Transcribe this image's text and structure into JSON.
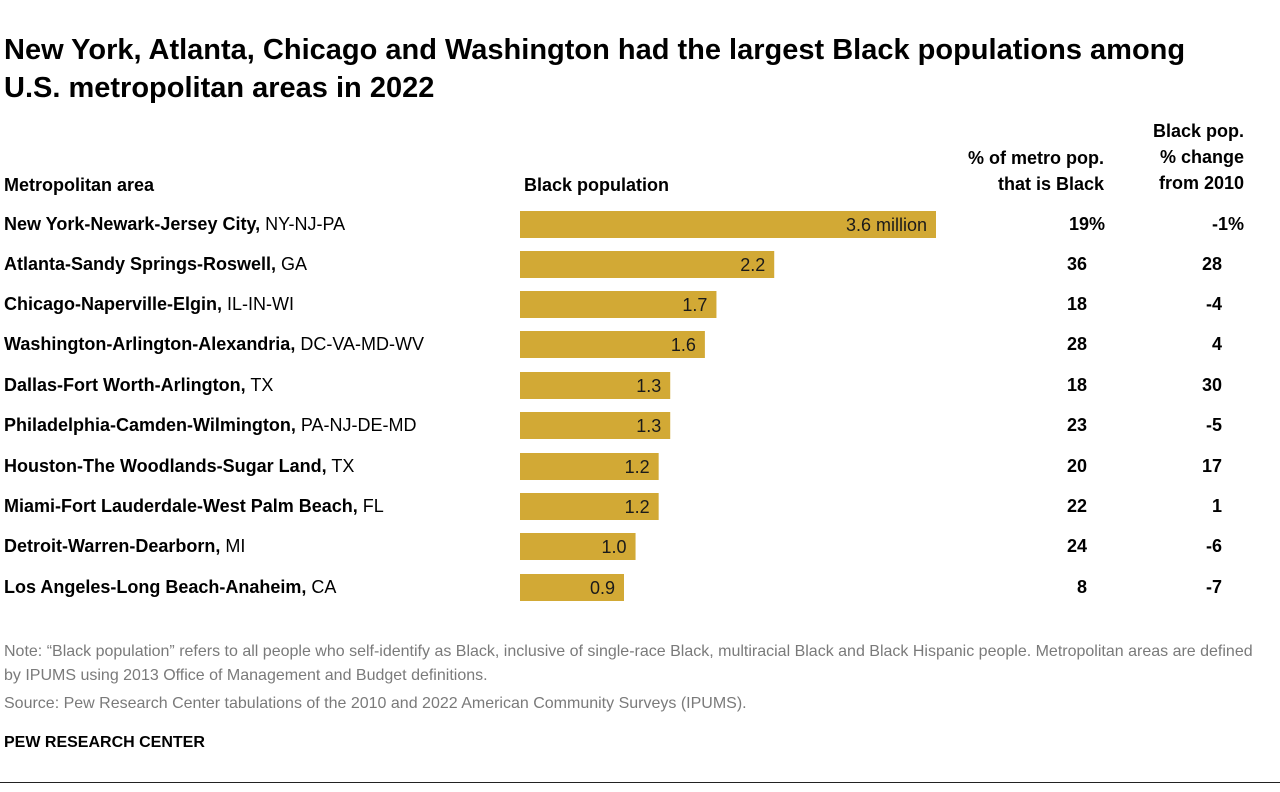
{
  "title": "New York, Atlanta, Chicago and Washington had the largest Black populations among U.S. metropolitan areas in 2022",
  "headers": {
    "area": "Metropolitan area",
    "bar": "Black population",
    "pct_line1": "% of metro pop.",
    "pct_line2": "that is Black",
    "chg_line1": "Black pop.",
    "chg_line2": "% change",
    "chg_line3": "from 2010"
  },
  "rows": [
    {
      "name": "New York-Newark-Jersey City,",
      "state": " NY-NJ-PA",
      "bar_label": "3.6 million",
      "pct": "19%",
      "chg": "-1%"
    },
    {
      "name": "Atlanta-Sandy Springs-Roswell,",
      "state": " GA",
      "bar_label": "2.2",
      "pct": "36",
      "chg": "28"
    },
    {
      "name": "Chicago-Naperville-Elgin,",
      "state": " IL-IN-WI",
      "bar_label": "1.7",
      "pct": "18",
      "chg": "-4"
    },
    {
      "name": "Washington-Arlington-Alexandria,",
      "state": " DC-VA-MD-WV",
      "bar_label": "1.6",
      "pct": "28",
      "chg": "4"
    },
    {
      "name": "Dallas-Fort Worth-Arlington,",
      "state": " TX",
      "bar_label": "1.3",
      "pct": "18",
      "chg": "30"
    },
    {
      "name": "Philadelphia-Camden-Wilmington,",
      "state": " PA-NJ-DE-MD",
      "bar_label": "1.3",
      "pct": "23",
      "chg": "-5"
    },
    {
      "name": "Houston-The Woodlands-Sugar Land,",
      "state": " TX",
      "bar_label": "1.2",
      "pct": "20",
      "chg": "17"
    },
    {
      "name": "Miami-Fort Lauderdale-West Palm Beach,",
      "state": " FL",
      "bar_label": "1.2",
      "pct": "22",
      "chg": "1"
    },
    {
      "name": "Detroit-Warren-Dearborn,",
      "state": " MI",
      "bar_label": "1.0",
      "pct": "24",
      "chg": "-6"
    },
    {
      "name": "Los Angeles-Long Beach-Anaheim,",
      "state": " CA",
      "bar_label": "0.9",
      "pct": "8",
      "chg": "-7"
    }
  ],
  "note": "Note: “Black population” refers to all people who self-identify as Black, inclusive of single-race Black, multiracial Black and Black Hispanic people. Metropolitan areas are defined by IPUMS using 2013 Office of Management and Budget definitions.",
  "source": "Source: Pew Research Center tabulations of the 2010 and 2022 American Community Surveys (IPUMS).",
  "brand": "PEW RESEARCH CENTER",
  "colors": {
    "bar": "#d2a935",
    "text": "#000000",
    "note": "#7a7a7a"
  },
  "chart_data": {
    "type": "bar",
    "orientation": "horizontal",
    "categories": [
      "New York-Newark-Jersey City, NY-NJ-PA",
      "Atlanta-Sandy Springs-Roswell, GA",
      "Chicago-Naperville-Elgin, IL-IN-WI",
      "Washington-Arlington-Alexandria, DC-VA-MD-WV",
      "Dallas-Fort Worth-Arlington, TX",
      "Philadelphia-Camden-Wilmington, PA-NJ-DE-MD",
      "Houston-The Woodlands-Sugar Land, TX",
      "Miami-Fort Lauderdale-West Palm Beach, FL",
      "Detroit-Warren-Dearborn, MI",
      "Los Angeles-Long Beach-Anaheim, CA"
    ],
    "values": [
      3.6,
      2.2,
      1.7,
      1.6,
      1.3,
      1.3,
      1.2,
      1.2,
      1.0,
      0.9
    ],
    "unit": "million",
    "xlim": [
      0,
      3.6
    ],
    "grid": false
  }
}
